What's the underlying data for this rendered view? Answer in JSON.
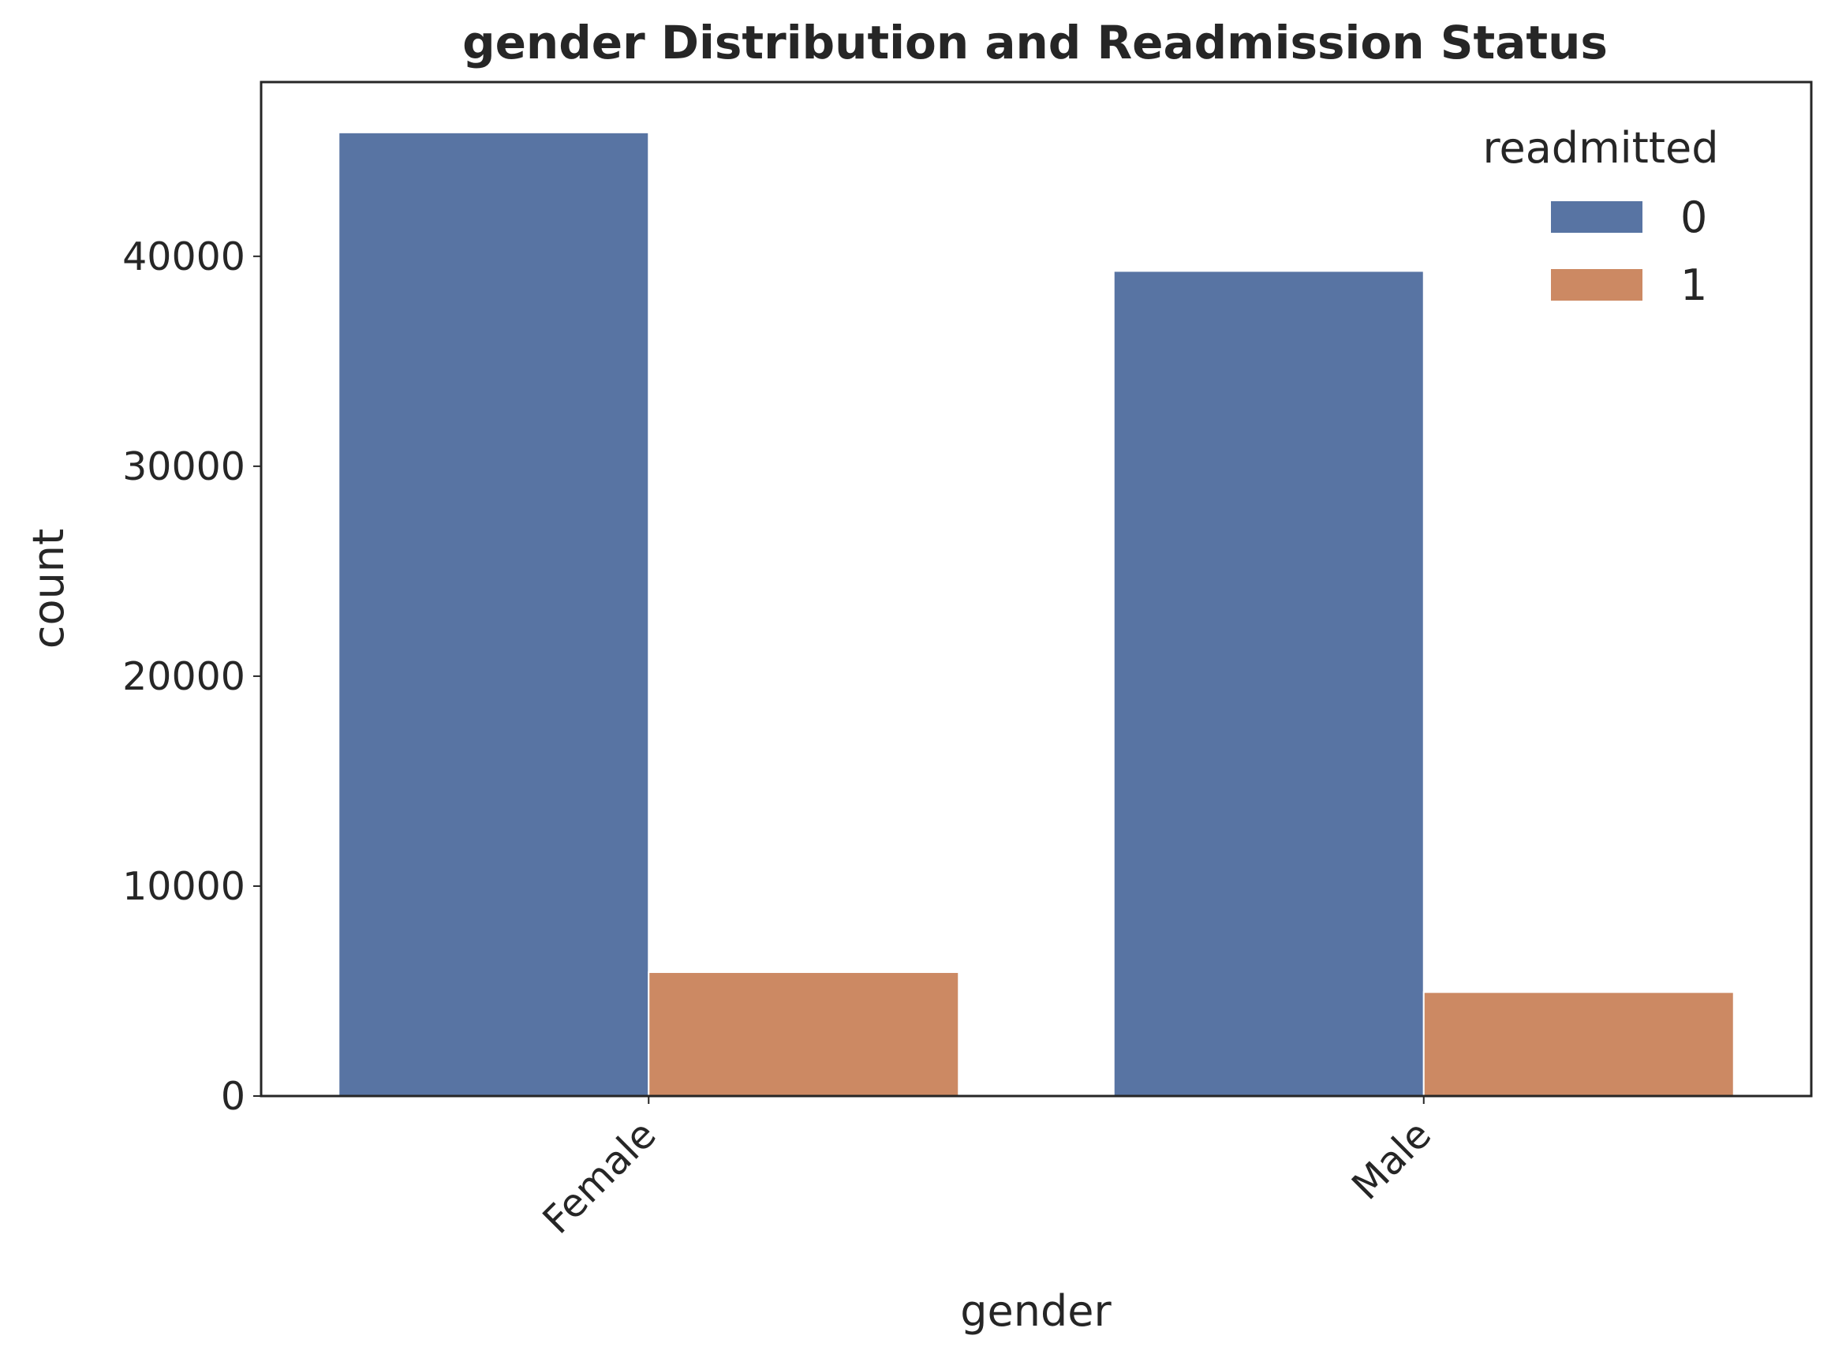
{
  "chart_data": {
    "type": "bar",
    "title": "gender Distribution and Readmission Status",
    "xlabel": "gender",
    "ylabel": "count",
    "categories": [
      "Female",
      "Male"
    ],
    "series": [
      {
        "name": "0",
        "values": [
          45900,
          39300
        ],
        "color": "#5874a3"
      },
      {
        "name": "1",
        "values": [
          5900,
          4950
        ],
        "color": "#cc8963"
      }
    ],
    "ylim": [
      0,
      48300
    ],
    "yticks": [
      0,
      10000,
      20000,
      30000,
      40000
    ],
    "ytick_labels": [
      "0",
      "10000",
      "20000",
      "30000",
      "40000"
    ],
    "xtick_rotation": 45,
    "legend": {
      "title": "readmitted",
      "position": "top-right"
    },
    "grid": false
  }
}
